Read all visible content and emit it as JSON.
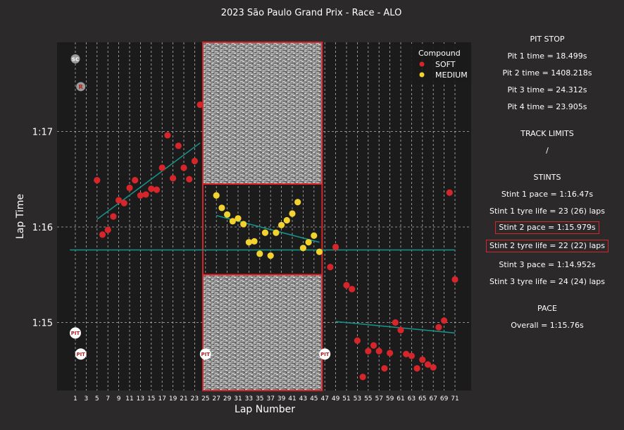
{
  "chart_data": {
    "type": "scatter",
    "title": "2023 São Paulo Grand Prix - Race - ALO",
    "xlabel": "Lap Number",
    "ylabel": "Lap Time",
    "xlim": [
      0,
      72
    ],
    "ylim": [
      74.25,
      77.95
    ],
    "x_ticks": [
      1,
      3,
      5,
      7,
      9,
      11,
      13,
      15,
      17,
      19,
      21,
      23,
      25,
      27,
      29,
      31,
      33,
      35,
      37,
      39,
      41,
      43,
      45,
      47,
      49,
      51,
      53,
      55,
      57,
      59,
      61,
      63,
      65,
      67,
      69,
      71
    ],
    "y_ticks": [
      {
        "value": 75,
        "label": "1:15"
      },
      {
        "value": 76,
        "label": "1:16"
      },
      {
        "value": 77,
        "label": "1:17"
      }
    ],
    "legend": {
      "title": "Compound",
      "position": "top-right",
      "entries": [
        "SOFT",
        "MEDIUM"
      ]
    },
    "colors": {
      "soft": "#d7262b",
      "medium": "#f2d22e",
      "trend": "#178f87",
      "highlight": "#d7262b",
      "background": "#1b1b1b"
    },
    "series": [
      {
        "name": "SOFT",
        "points": [
          [
            5,
            76.49
          ],
          [
            6,
            75.92
          ],
          [
            7,
            75.97
          ],
          [
            8,
            76.11
          ],
          [
            9,
            76.28
          ],
          [
            10,
            76.25
          ],
          [
            11,
            76.41
          ],
          [
            12,
            76.49
          ],
          [
            13,
            76.33
          ],
          [
            14,
            76.34
          ],
          [
            15,
            76.4
          ],
          [
            16,
            76.39
          ],
          [
            17,
            76.62
          ],
          [
            18,
            76.96
          ],
          [
            19,
            76.51
          ],
          [
            20,
            76.85
          ],
          [
            21,
            76.62
          ],
          [
            22,
            76.5
          ],
          [
            23,
            76.69
          ],
          [
            24,
            77.28
          ],
          [
            48,
            75.58
          ],
          [
            49,
            75.79
          ],
          [
            51,
            75.39
          ],
          [
            52,
            75.35
          ],
          [
            53,
            74.81
          ],
          [
            54,
            74.43
          ],
          [
            55,
            74.7
          ],
          [
            56,
            74.76
          ],
          [
            57,
            74.7
          ],
          [
            58,
            74.52
          ],
          [
            59,
            74.68
          ],
          [
            60,
            75.0
          ],
          [
            61,
            74.92
          ],
          [
            62,
            74.67
          ],
          [
            63,
            74.65
          ],
          [
            64,
            74.52
          ],
          [
            65,
            74.61
          ],
          [
            66,
            74.56
          ],
          [
            67,
            74.53
          ],
          [
            68,
            74.95
          ],
          [
            69,
            75.02
          ],
          [
            70,
            76.36
          ],
          [
            71,
            75.45
          ]
        ]
      },
      {
        "name": "MEDIUM",
        "points": [
          [
            27,
            76.33
          ],
          [
            28,
            76.2
          ],
          [
            29,
            76.13
          ],
          [
            30,
            76.06
          ],
          [
            31,
            76.09
          ],
          [
            32,
            76.03
          ],
          [
            33,
            75.84
          ],
          [
            34,
            75.85
          ],
          [
            35,
            75.72
          ],
          [
            36,
            75.94
          ],
          [
            37,
            75.7
          ],
          [
            38,
            75.94
          ],
          [
            39,
            76.02
          ],
          [
            40,
            76.07
          ],
          [
            41,
            76.14
          ],
          [
            42,
            76.26
          ],
          [
            43,
            75.78
          ],
          [
            44,
            75.84
          ],
          [
            45,
            75.91
          ],
          [
            46,
            75.74
          ]
        ]
      }
    ],
    "trend_lines": [
      {
        "x": [
          5,
          24
        ],
        "y": [
          76.08,
          76.88
        ]
      },
      {
        "x": [
          27,
          46
        ],
        "y": [
          76.12,
          75.84
        ]
      },
      {
        "x": [
          49,
          71
        ],
        "y": [
          75.01,
          74.89
        ]
      }
    ],
    "overall_pace_line": {
      "x": [
        0,
        71
      ],
      "y": 75.76
    },
    "highlight_stint": {
      "x_start": 24.5,
      "x_end": 46.5,
      "y_low": 75.5,
      "y_high": 76.45
    },
    "markers": [
      {
        "label": "SC",
        "lap": 1,
        "y": 77.76
      },
      {
        "label": "R",
        "lap": 2,
        "y": 77.47
      },
      {
        "label": "PIT",
        "lap": 1,
        "y": 74.89
      },
      {
        "label": "PIT",
        "lap": 2,
        "y": 74.67
      },
      {
        "label": "PIT",
        "lap": 25,
        "y": 74.67
      },
      {
        "label": "PIT",
        "lap": 47,
        "y": 74.67
      }
    ]
  },
  "side_panel": {
    "pit_header": "PIT STOP",
    "pit_lines": [
      "Pit 1 time = 18.499s",
      "Pit 2 time = 1408.218s",
      "Pit 3 time = 24.312s",
      "Pit 4 time = 23.905s"
    ],
    "track_header": "TRACK LIMITS",
    "track_value": "/",
    "stints_header": "STINTS",
    "stint1_pace": "Stint 1 pace = 1:16.47s",
    "stint1_life": "Stint 1 tyre life = 23 (26) laps",
    "stint2_pace": "Stint 2 pace = 1:15.979s",
    "stint2_life": "Stint 2 tyre life = 22 (22) laps",
    "stint3_pace": "Stint 3 pace = 1:14.952s",
    "stint3_life": "Stint 3 tyre life = 24 (24) laps",
    "pace_header": "PACE",
    "pace_overall": "Overall = 1:15.76s"
  }
}
